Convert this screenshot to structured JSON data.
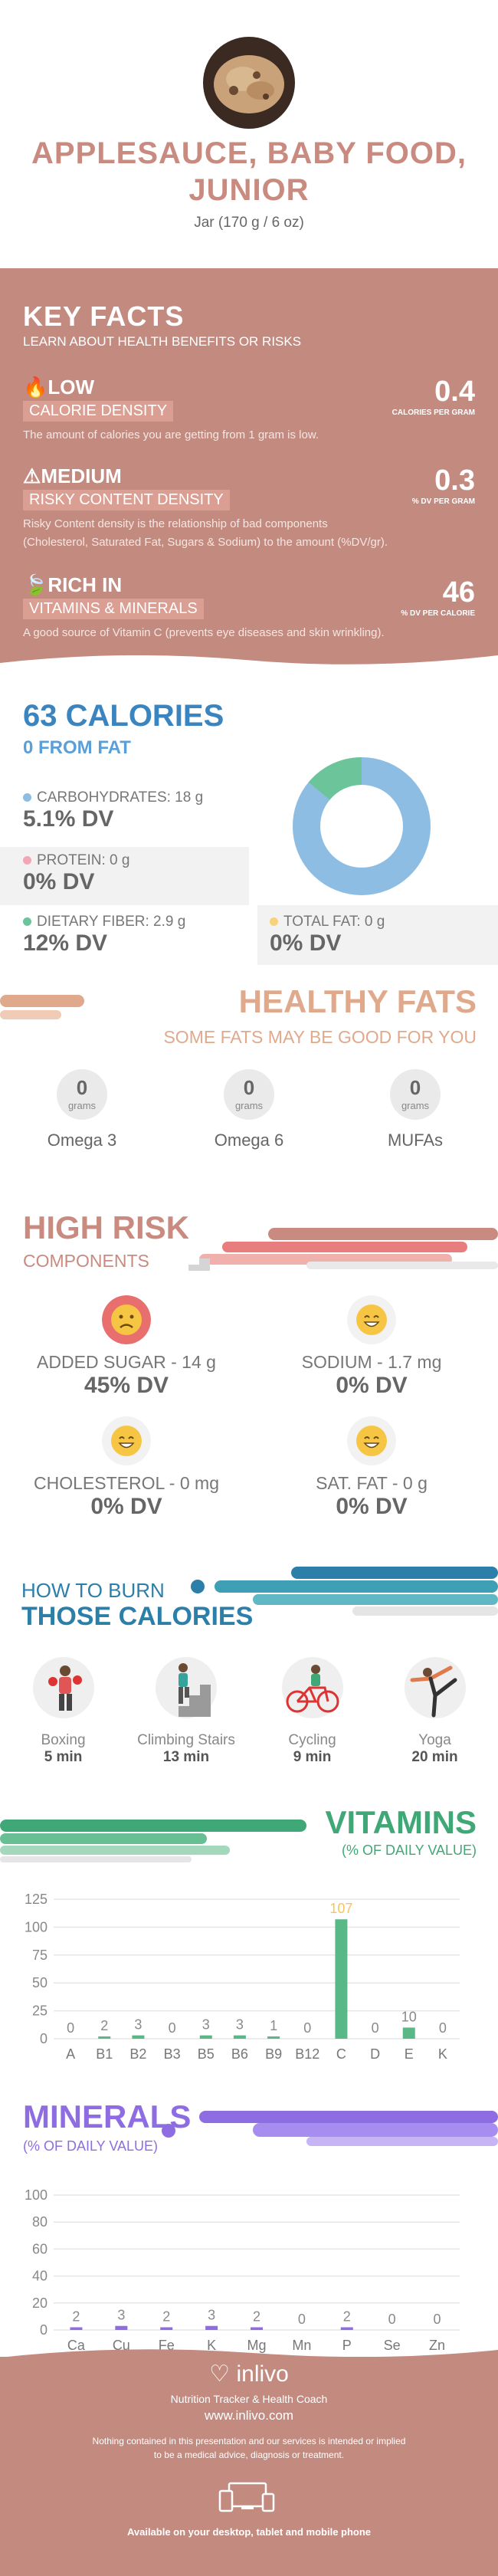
{
  "header": {
    "title_line1": "APPLESAUCE, BABY FOOD,",
    "title_line2": "JUNIOR",
    "serving": "Jar (170 g / 6 oz)"
  },
  "key_facts": {
    "title": "KEY FACTS",
    "subtitle": "LEARN ABOUT HEALTH BENEFITS OR RISKS",
    "items": [
      {
        "level": "LOW",
        "label": "CALORIE DENSITY",
        "value": "0.4",
        "unit": "CALORIES PER GRAM",
        "desc": "The amount of calories you are getting from 1 gram is low.",
        "icon": "flame-icon"
      },
      {
        "level": "MEDIUM",
        "label": "RISKY CONTENT DENSITY",
        "value": "0.3",
        "unit": "% DV PER GRAM",
        "desc1": "Risky Content density is the relationship of bad components",
        "desc2": "(Cholesterol, Saturated Fat, Sugars & Sodium) to the amount (%DV/gr).",
        "icon": "warning-icon"
      },
      {
        "level": "RICH  IN",
        "label": "VITAMINS & MINERALS",
        "value": "46",
        "unit": "% DV PER CALORIE",
        "desc": "A good source of Vitamin C (prevents eye diseases and skin wrinkling).",
        "icon": "leaf-icon"
      }
    ]
  },
  "calories": {
    "title": "63 CALORIES",
    "fat": "0 FROM FAT",
    "carbs_label": "CARBOHYDRATES: 18 g",
    "carbs_dv": "5.1% DV",
    "protein_label": "PROTEIN: 0 g",
    "protein_dv": "0% DV",
    "fiber_label": "DIETARY FIBER: 2.9 g",
    "fiber_dv": "12% DV",
    "totalfat_label": "TOTAL FAT: 0 g",
    "totalfat_dv": "0% DV",
    "colors": {
      "carbs": "#8dbde3",
      "protein": "#f3a6b5",
      "fiber": "#6cc59a",
      "fat": "#f7d27a"
    },
    "donut": {
      "carbs_fraction": 0.86,
      "fiber_fraction": 0.14
    }
  },
  "healthy_fats": {
    "title": "HEALTHY FATS",
    "subtitle": "SOME FATS MAY BE GOOD FOR YOU",
    "unit": "grams",
    "items": [
      {
        "name": "Omega 3",
        "value": "0"
      },
      {
        "name": "Omega 6",
        "value": "0"
      },
      {
        "name": "MUFAs",
        "value": "0"
      }
    ]
  },
  "high_risk": {
    "title": "HIGH RISK",
    "subtitle": "COMPONENTS",
    "items": [
      {
        "label": "ADDED SUGAR - 14 g",
        "dv": "45% DV",
        "face": "sad-face-icon"
      },
      {
        "label": "SODIUM - 1.7 mg",
        "dv": "0% DV",
        "face": "happy-face-icon"
      },
      {
        "label": "CHOLESTEROL - 0 mg",
        "dv": "0% DV",
        "face": "happy-face-icon"
      },
      {
        "label": "SAT. FAT - 0 g",
        "dv": "0% DV",
        "face": "happy-face-icon"
      }
    ]
  },
  "burn": {
    "title1": "HOW TO BURN",
    "title2": "THOSE CALORIES",
    "activities": [
      {
        "name": "Boxing",
        "time": "5 min",
        "icon": "boxing-icon"
      },
      {
        "name": "Climbing Stairs",
        "time": "13 min",
        "icon": "stairs-icon"
      },
      {
        "name": "Cycling",
        "time": "9 min",
        "icon": "cycling-icon"
      },
      {
        "name": "Yoga",
        "time": "20 min",
        "icon": "yoga-icon"
      }
    ]
  },
  "vitamins": {
    "title": "VITAMINS",
    "subtitle": "(% OF DAILY VALUE)"
  },
  "minerals": {
    "title": "MINERALS",
    "subtitle": "(% OF DAILY VALUE)"
  },
  "chart_data": [
    {
      "type": "bar",
      "categories": [
        "A",
        "B1",
        "B2",
        "B3",
        "B5",
        "B6",
        "B9",
        "B12",
        "C",
        "D",
        "E",
        "K"
      ],
      "values": [
        0,
        2,
        3,
        0,
        3,
        3,
        1,
        0,
        107,
        0,
        10,
        0
      ],
      "ylim": [
        0,
        125
      ],
      "yticks": [
        0,
        25,
        50,
        75,
        100,
        125
      ],
      "color": "#5ab887",
      "highlight_color": "#f5c45e",
      "highlight_label": "C"
    },
    {
      "type": "bar",
      "categories": [
        "Ca",
        "Cu",
        "Fe",
        "K",
        "Mg",
        "Mn",
        "P",
        "Se",
        "Zn"
      ],
      "values": [
        2,
        3,
        2,
        3,
        2,
        0,
        2,
        0,
        0
      ],
      "ylim": [
        0,
        100
      ],
      "yticks": [
        0,
        20,
        40,
        60,
        80,
        100
      ],
      "color": "#8e6de3"
    }
  ],
  "footer": {
    "brand": "inlivo",
    "tagline": "Nutrition Tracker & Health Coach",
    "url": "www.inlivo.com",
    "disclaimer1": "Nothing contained in this presentation and our services is intended or implied",
    "disclaimer2": "to be a medical advice, diagnosis or treatment.",
    "devices": "Available on your desktop, tablet and mobile phone"
  }
}
